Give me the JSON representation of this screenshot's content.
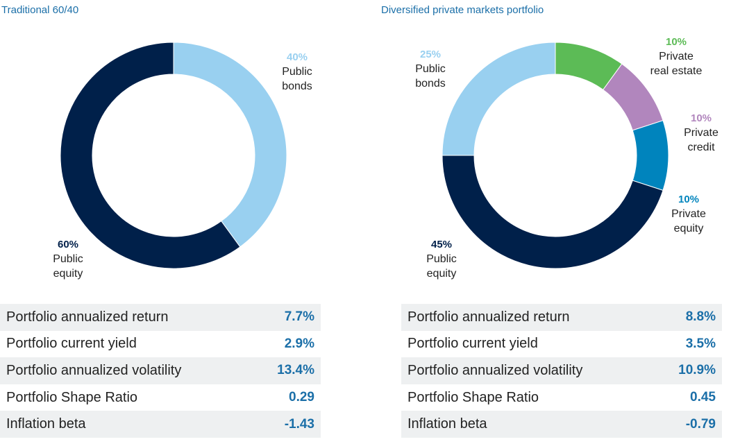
{
  "colors": {
    "title": "#1b6fa8",
    "public_equity": "#00204a",
    "public_bonds": "#99d0f0",
    "private_real_estate": "#5cbb56",
    "private_credit": "#b186bd",
    "private_equity": "#0084bd",
    "metric_value": "#1b6fa8"
  },
  "chart_data": [
    {
      "type": "pie",
      "style": "donut",
      "title": "Traditional 60/40",
      "slices": [
        {
          "name": "Public bonds",
          "pct_label": "40%",
          "value": 40,
          "color": "#99d0f0"
        },
        {
          "name": "Public equity",
          "pct_label": "60%",
          "value": 60,
          "color": "#00204a"
        }
      ]
    },
    {
      "type": "pie",
      "style": "donut",
      "title": "Diversified private markets portfolio",
      "slices": [
        {
          "name": "Private real estate",
          "pct_label": "10%",
          "value": 10,
          "color": "#5cbb56"
        },
        {
          "name": "Private credit",
          "pct_label": "10%",
          "value": 10,
          "color": "#b186bd"
        },
        {
          "name": "Private equity",
          "pct_label": "10%",
          "value": 10,
          "color": "#0084bd"
        },
        {
          "name": "Public equity",
          "pct_label": "45%",
          "value": 45,
          "color": "#00204a"
        },
        {
          "name": "Public bonds",
          "pct_label": "25%",
          "value": 25,
          "color": "#99d0f0"
        }
      ]
    }
  ],
  "labels": {
    "left": {
      "public_bonds": {
        "pct": "40%",
        "line1": "Public",
        "line2": "bonds"
      },
      "public_equity": {
        "pct": "60%",
        "line1": "Public",
        "line2": "equity"
      }
    },
    "right": {
      "public_bonds": {
        "pct": "25%",
        "line1": "Public",
        "line2": "bonds"
      },
      "private_real_estate": {
        "pct": "10%",
        "line1": "Private",
        "line2": "real estate"
      },
      "private_credit": {
        "pct": "10%",
        "line1": "Private",
        "line2": "credit"
      },
      "private_equity": {
        "pct": "10%",
        "line1": "Private",
        "line2": "equity"
      },
      "public_equity": {
        "pct": "45%",
        "line1": "Public",
        "line2": "equity"
      }
    }
  },
  "metrics": {
    "left": [
      {
        "label": "Portfolio annualized return",
        "value": "7.7%"
      },
      {
        "label": "Portfolio current yield",
        "value": "2.9%"
      },
      {
        "label": "Portfolio annualized volatility",
        "value": "13.4%"
      },
      {
        "label": "Portfolio Shape Ratio",
        "value": "0.29"
      },
      {
        "label": "Inflation beta",
        "value": "-1.43"
      }
    ],
    "right": [
      {
        "label": "Portfolio annualized return",
        "value": "8.8%"
      },
      {
        "label": "Portfolio current yield",
        "value": "3.5%"
      },
      {
        "label": "Portfolio annualized volatility",
        "value": "10.9%"
      },
      {
        "label": "Portfolio Shape Ratio",
        "value": "0.45"
      },
      {
        "label": "Inflation beta",
        "value": "-0.79"
      }
    ]
  }
}
